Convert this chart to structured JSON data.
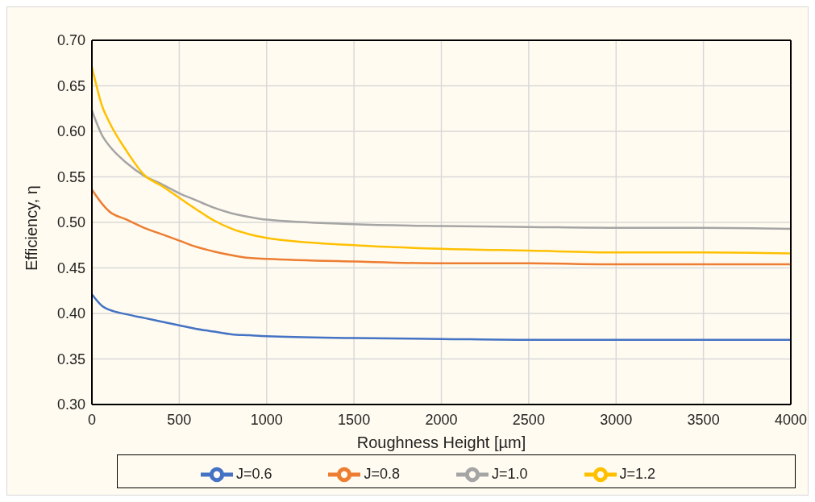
{
  "chart_data": {
    "type": "line",
    "xlabel": "Roughness Height [µm]",
    "ylabel": "Efficiency, η",
    "x": [
      0,
      60,
      100,
      200,
      300,
      400,
      500,
      600,
      700,
      800,
      900,
      1000,
      1500,
      2000,
      2500,
      3000,
      3500,
      4000
    ],
    "series": [
      {
        "name": "J=0.6",
        "color": "#4472c4",
        "values": [
          0.421,
          0.408,
          0.404,
          0.399,
          0.395,
          0.391,
          0.387,
          0.383,
          0.38,
          0.377,
          0.376,
          0.375,
          0.373,
          0.372,
          0.371,
          0.371,
          0.371,
          0.371
        ]
      },
      {
        "name": "J=0.8",
        "color": "#ed7d31",
        "values": [
          0.536,
          0.52,
          0.512,
          0.503,
          0.494,
          0.487,
          0.48,
          0.473,
          0.468,
          0.464,
          0.461,
          0.46,
          0.457,
          0.455,
          0.455,
          0.454,
          0.454,
          0.454
        ]
      },
      {
        "name": "J=1.0",
        "color": "#a5a5a5",
        "values": [
          0.623,
          0.595,
          0.584,
          0.565,
          0.551,
          0.542,
          0.532,
          0.524,
          0.516,
          0.51,
          0.506,
          0.503,
          0.498,
          0.496,
          0.495,
          0.494,
          0.494,
          0.493
        ]
      },
      {
        "name": "J=1.2",
        "color": "#ffc000",
        "values": [
          0.671,
          0.627,
          0.61,
          0.578,
          0.552,
          0.54,
          0.527,
          0.514,
          0.502,
          0.493,
          0.487,
          0.483,
          0.475,
          0.471,
          0.469,
          0.467,
          0.467,
          0.466
        ]
      }
    ],
    "xlim": [
      0,
      4000
    ],
    "xticks": [
      0,
      500,
      1000,
      1500,
      2000,
      2500,
      3000,
      3500,
      4000
    ],
    "ylim": [
      0.3,
      0.7
    ],
    "yticks": [
      {
        "value": 0.3,
        "label": "0.30"
      },
      {
        "value": 0.35,
        "label": "0.35"
      },
      {
        "value": 0.4,
        "label": "0.40"
      },
      {
        "value": 0.45,
        "label": "0.45"
      },
      {
        "value": 0.5,
        "label": "0.50"
      },
      {
        "value": 0.55,
        "label": "0.55"
      },
      {
        "value": 0.6,
        "label": "0.60"
      },
      {
        "value": 0.65,
        "label": "0.65"
      },
      {
        "value": 0.7,
        "label": "0.70"
      }
    ],
    "grid": true,
    "legend": "bottom",
    "marker": "none",
    "line_style": "solid"
  }
}
